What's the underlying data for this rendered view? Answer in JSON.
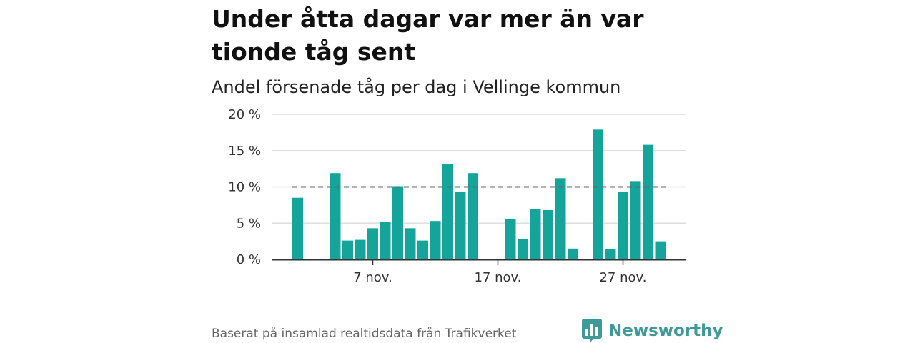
{
  "title": "Under åtta dagar var mer än var tionde tåg sent",
  "subtitle": "Andel försenade tåg per dag i Vellinge kommun",
  "footer": "Baserat på insamlad realtidsdata från Trafikverket",
  "brand": {
    "name": "Newsworthy",
    "icon": "newsworthy-logo-icon"
  },
  "colors": {
    "bar": "#14a499",
    "reference_line": "#666666",
    "grid": "#dddddd",
    "axis": "#333333",
    "brand": "#3d9a98"
  },
  "chart_data": {
    "type": "bar",
    "title": "Andel försenade tåg per dag i Vellinge kommun",
    "x": [
      1,
      2,
      3,
      4,
      5,
      6,
      7,
      8,
      9,
      10,
      11,
      12,
      13,
      14,
      15,
      16,
      17,
      18,
      19,
      20,
      21,
      22,
      23,
      24,
      25,
      26,
      27,
      28,
      29,
      30
    ],
    "values": [
      8.5,
      null,
      null,
      11.9,
      2.6,
      2.7,
      4.3,
      5.2,
      10.1,
      4.3,
      2.6,
      5.3,
      13.2,
      9.3,
      11.9,
      null,
      null,
      5.6,
      2.8,
      6.9,
      6.8,
      11.2,
      1.5,
      null,
      17.9,
      1.4,
      9.3,
      10.8,
      15.8,
      2.5
    ],
    "x_ticks": [
      {
        "x": 7,
        "label": "7 nov."
      },
      {
        "x": 17,
        "label": "17 nov."
      },
      {
        "x": 27,
        "label": "27 nov."
      }
    ],
    "y_ticks": [
      {
        "value": 0,
        "label": "0 %"
      },
      {
        "value": 5,
        "label": "5 %"
      },
      {
        "value": 10,
        "label": "10 %"
      },
      {
        "value": 15,
        "label": "15 %"
      },
      {
        "value": 20,
        "label": "20 %"
      }
    ],
    "ylim": [
      0,
      20
    ],
    "xlabel": "",
    "ylabel": "",
    "reference_line": {
      "value": 10,
      "style": "dashed"
    },
    "grid": true,
    "legend": "none"
  }
}
